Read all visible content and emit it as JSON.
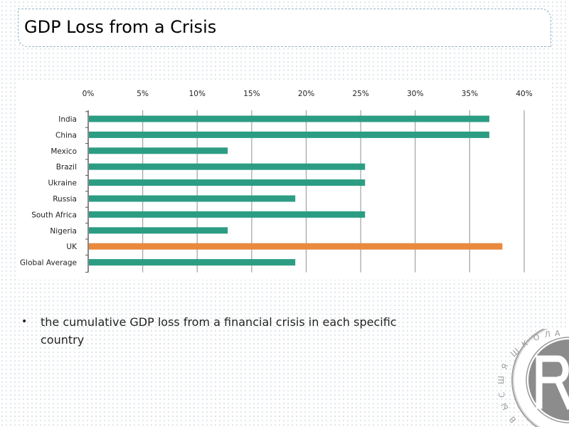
{
  "slide": {
    "title": "GDP Loss from a Crisis",
    "bullets": [
      "the cumulative GDP loss from a financial crisis in each specific country"
    ]
  },
  "chart_data": {
    "type": "bar",
    "orientation": "horizontal",
    "title": "",
    "xlabel": "",
    "ylabel": "",
    "categories": [
      "India",
      "China",
      "Mexico",
      "Brazil",
      "Ukraine",
      "Russia",
      "South Africa",
      "Nigeria",
      "UK",
      "Global Average"
    ],
    "values": [
      36.8,
      36.8,
      12.8,
      25.4,
      25.4,
      19.0,
      25.4,
      12.8,
      38.0,
      19.0
    ],
    "xlim": [
      0,
      40
    ],
    "x_ticks": [
      "0%",
      "5%",
      "10%",
      "15%",
      "20%",
      "25%",
      "30%",
      "35%",
      "40%"
    ],
    "x_axis_position": "top",
    "grid": true,
    "legend": "none",
    "colors": {
      "default": "#2c9d83",
      "highlight": "#e8893d",
      "highlight_category": "UK"
    }
  },
  "logo": {
    "name": "university-seal-logo",
    "text": "ШКОЛА ЭКОНОМИКИ ВЫСШАЯ"
  }
}
